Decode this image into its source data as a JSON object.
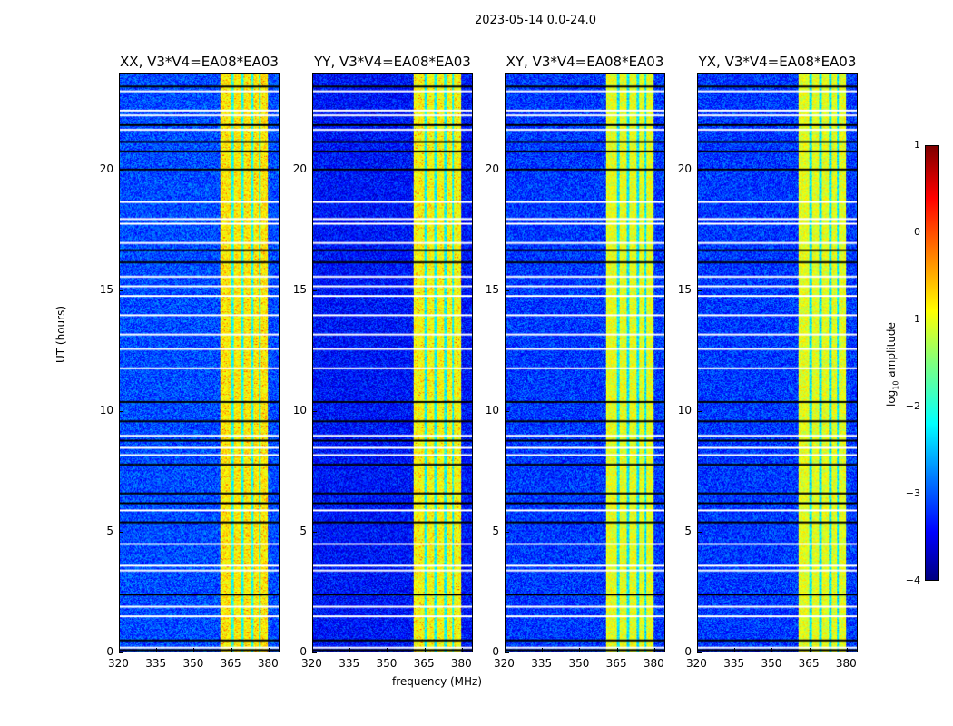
{
  "suptitle": "2023-05-14 0.0-24.0",
  "chart_data": {
    "type": "heatmap",
    "title": "2023-05-14 0.0-24.0",
    "xlabel": "frequency (MHz)",
    "ylabel": "UT (hours)",
    "xlim": [
      320,
      384.4
    ],
    "ylim": [
      0,
      24
    ],
    "xticks": [
      "320",
      "335",
      "350",
      "365",
      "380"
    ],
    "xtick_values": [
      320,
      335,
      350,
      365,
      380
    ],
    "yticks": [
      "0",
      "5",
      "10",
      "15",
      "20"
    ],
    "ytick_values": [
      0,
      5,
      10,
      15,
      20
    ],
    "panels": [
      {
        "title": "XX, V3*V4=EA08*EA03",
        "background_log10": -3.0,
        "band_log10": -0.8
      },
      {
        "title": "YY, V3*V4=EA08*EA03",
        "background_log10": -3.3,
        "band_log10": -0.9
      },
      {
        "title": "XY, V3*V4=EA08*EA03",
        "background_log10": -3.1,
        "band_log10": -1.0
      },
      {
        "title": "YX, V3*V4=EA08*EA03",
        "background_log10": -3.1,
        "band_log10": -1.0
      }
    ],
    "signal_band_mhz": [
      360.7,
      380.0
    ],
    "band_notches_mhz": [
      365.5,
      369.5,
      373.5,
      376.5
    ],
    "flagged_white_hours": [
      23.3,
      22.5,
      22.3,
      21.7,
      18.7,
      18.0,
      17.8,
      17.0,
      15.6,
      15.2,
      14.8,
      14.0,
      13.2,
      12.6,
      11.8,
      9.0,
      8.5,
      8.2,
      5.9,
      4.5,
      3.6,
      3.4,
      1.9,
      1.5,
      0.2
    ],
    "flagged_black_hours": [
      23.5,
      21.9,
      21.2,
      20.8,
      20.05,
      16.7,
      16.2,
      10.4,
      9.6,
      8.8,
      7.8,
      6.6,
      6.2,
      5.4,
      2.4,
      0.5,
      0.1
    ],
    "colorbar": {
      "label": "log10 amplitude",
      "label_main": "log",
      "label_sub": "10",
      "label_rest": " amplitude",
      "range": [
        -4,
        1
      ],
      "ticks": [
        "1",
        "0",
        "−1",
        "−2",
        "−3",
        "−4"
      ],
      "tick_values": [
        1,
        0,
        -1,
        -2,
        -3,
        -4
      ],
      "colormap": "jet"
    }
  }
}
